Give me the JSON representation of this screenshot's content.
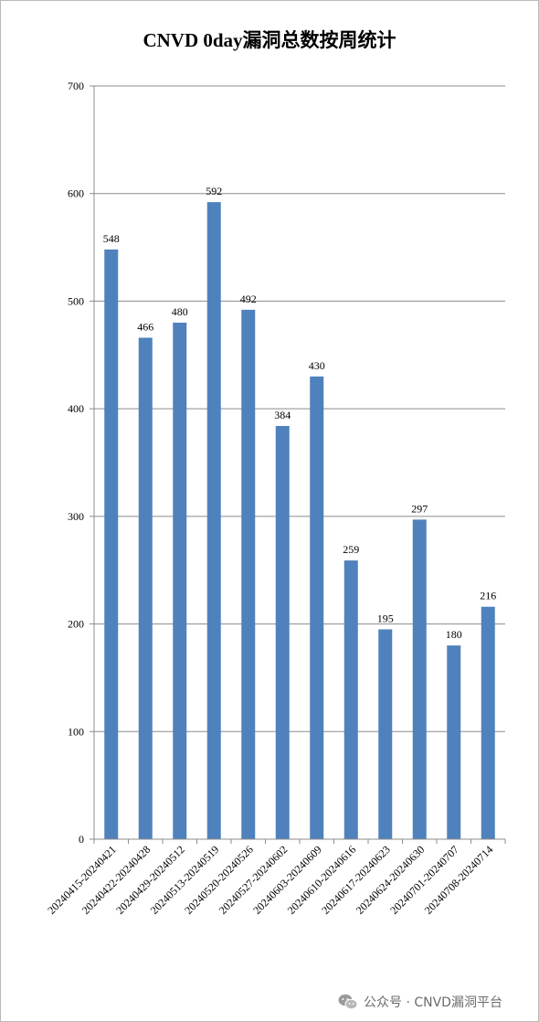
{
  "chart_data": {
    "type": "bar",
    "title": "CNVD 0day漏洞总数按周统计",
    "categories": [
      "20240415-20240421",
      "20240422-20240428",
      "20240429-20240512",
      "20240513-20240519",
      "20240520-20240526",
      "20240527-20240602",
      "20240603-20240609",
      "20240610-20240616",
      "20240617-20240623",
      "20240624-20240630",
      "20240701-20240707",
      "20240708-20240714"
    ],
    "values": [
      548,
      466,
      480,
      592,
      492,
      384,
      430,
      259,
      195,
      297,
      180,
      216
    ],
    "ylim": [
      0,
      700
    ],
    "yticks": [
      0,
      100,
      200,
      300,
      400,
      500,
      600,
      700
    ],
    "grid": true,
    "legend": "none",
    "bar_color": "#4f81bd",
    "xlabel": "",
    "ylabel": ""
  },
  "watermark": {
    "icon": "wechat-icon",
    "text": "公众号 · CNVD漏洞平台"
  }
}
